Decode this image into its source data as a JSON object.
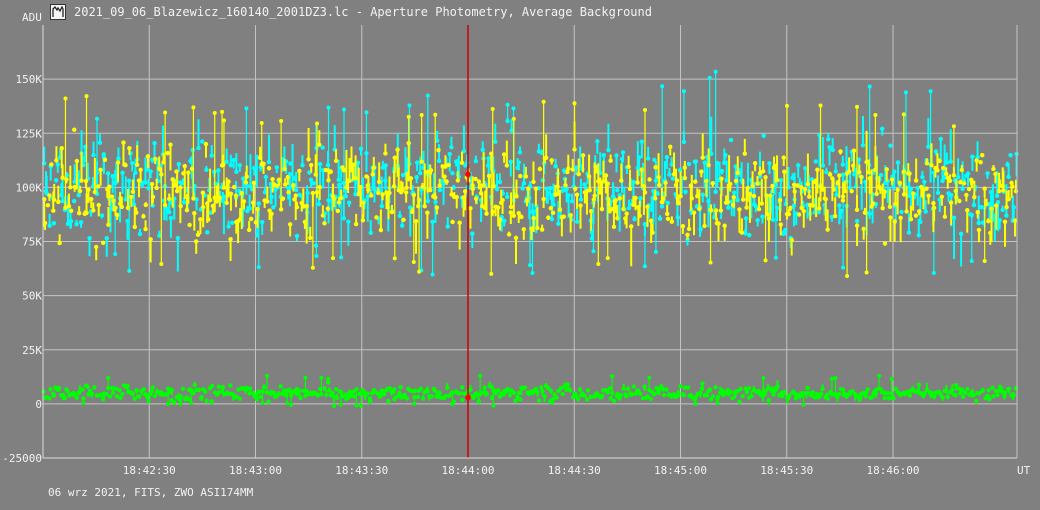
{
  "window": {
    "title": "2021_09_06_Blazewicz_160140_2001DZ3.lc - Aperture Photometry, Average Background",
    "footer": "06 wrz 2021, FITS, ZWO ASI174MM"
  },
  "icons": {
    "app": "lightcurve-app-icon"
  },
  "chart_data": {
    "type": "scatter",
    "title": "2021_09_06_Blazewicz_160140_2001DZ3.lc - Aperture Photometry, Average Background",
    "ylabel": "ADU",
    "xlabel": "UT",
    "ylim": [
      -25000,
      175000
    ],
    "xlim": [
      "18:42:00",
      "18:46:35"
    ],
    "grid": true,
    "y_ticks": [
      {
        "value": 150000,
        "label": "150K"
      },
      {
        "value": 125000,
        "label": "125K"
      },
      {
        "value": 100000,
        "label": "100K"
      },
      {
        "value": 75000,
        "label": "75K"
      },
      {
        "value": 50000,
        "label": "50K"
      },
      {
        "value": 25000,
        "label": "25K"
      },
      {
        "value": 0,
        "label": "0"
      },
      {
        "value": -25000,
        "label": "-25000"
      }
    ],
    "x_ticks": [
      "18:42:30",
      "18:43:00",
      "18:43:30",
      "18:44:00",
      "18:44:30",
      "18:45:00",
      "18:45:30",
      "18:46:00"
    ],
    "cursor_time": "18:44:00",
    "series": [
      {
        "color": "#00ffff",
        "mean": 100000,
        "spread": 15000,
        "envelope": [
          {
            "t": "18:42:00",
            "min": 62000,
            "max": 140000
          },
          {
            "t": "18:43:00",
            "min": 60000,
            "max": 142000
          },
          {
            "t": "18:44:00",
            "min": 58000,
            "max": 143000
          },
          {
            "t": "18:44:30",
            "min": 62000,
            "max": 146000
          },
          {
            "t": "18:45:30",
            "min": 60000,
            "max": 158000
          },
          {
            "t": "18:46:35",
            "min": 60000,
            "max": 138000
          }
        ]
      },
      {
        "color": "#ffff00",
        "mean": 98000,
        "spread": 14000,
        "envelope": [
          {
            "t": "18:42:00",
            "min": 65000,
            "max": 150000
          },
          {
            "t": "18:43:00",
            "min": 64000,
            "max": 135000
          },
          {
            "t": "18:44:00",
            "min": 58000,
            "max": 138000
          },
          {
            "t": "18:45:00",
            "min": 60000,
            "max": 143000
          },
          {
            "t": "18:46:35",
            "min": 58000,
            "max": 132000
          }
        ]
      },
      {
        "color": "#00ff00",
        "mean": 5000,
        "spread": 2500,
        "envelope": [
          {
            "t": "18:42:00",
            "min": -1000,
            "max": 13000
          },
          {
            "t": "18:46:35",
            "min": -1000,
            "max": 13000
          }
        ]
      }
    ],
    "markers": [
      {
        "t": "18:44:00",
        "value": 106000,
        "color": "#ff0000"
      },
      {
        "t": "18:44:00",
        "value": 3000,
        "color": "#ff0000"
      }
    ]
  }
}
